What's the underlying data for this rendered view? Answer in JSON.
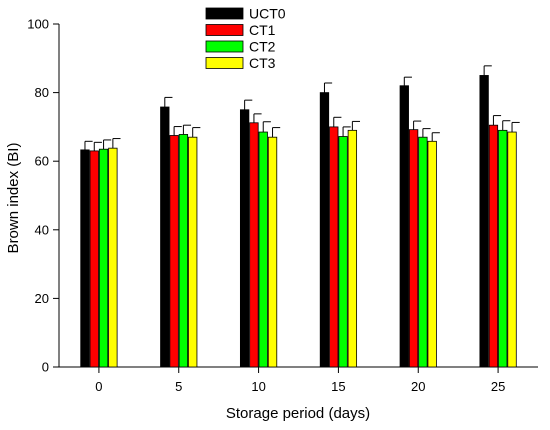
{
  "chart_data": {
    "type": "bar",
    "title": "",
    "xlabel": "Storage period (days)",
    "ylabel": "Brown index (BI)",
    "ylim": [
      0,
      100
    ],
    "yticks": [
      0,
      20,
      40,
      60,
      80,
      100
    ],
    "categories": [
      "0",
      "5",
      "10",
      "15",
      "20",
      "25"
    ],
    "legend_position": "top-center",
    "grid": false,
    "error_bars": true,
    "series": [
      {
        "name": "UCT0",
        "color": "#000000",
        "values": [
          63.3,
          75.8,
          75.0,
          80.0,
          82.0,
          85.0
        ],
        "errors": [
          2.5,
          2.8,
          2.8,
          2.8,
          2.5,
          2.8
        ]
      },
      {
        "name": "CT1",
        "color": "#ff0000",
        "values": [
          63.0,
          67.5,
          71.2,
          70.0,
          69.2,
          70.5
        ],
        "errors": [
          2.5,
          2.6,
          2.6,
          2.8,
          2.5,
          2.8
        ]
      },
      {
        "name": "CT2",
        "color": "#00ff00",
        "values": [
          63.5,
          67.8,
          68.5,
          67.2,
          67.0,
          69.0
        ],
        "errors": [
          2.7,
          2.7,
          3.0,
          2.8,
          2.5,
          2.8
        ]
      },
      {
        "name": "CT3",
        "color": "#ffff00",
        "values": [
          63.8,
          67.0,
          67.0,
          69.0,
          65.8,
          68.5
        ],
        "errors": [
          2.8,
          2.8,
          2.8,
          2.6,
          2.5,
          2.8
        ]
      }
    ]
  }
}
